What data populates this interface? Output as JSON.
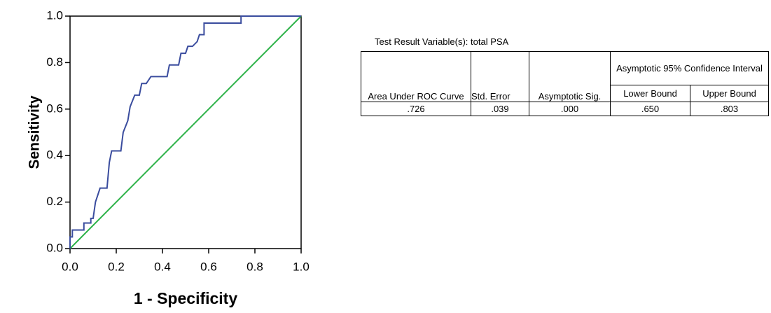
{
  "chart_data": {
    "type": "line",
    "xlabel": "1 - Specificity",
    "ylabel": "Sensitivity",
    "xlim": [
      0,
      1
    ],
    "ylim": [
      0,
      1
    ],
    "xticks": [
      {
        "value": 0,
        "label": "0.0"
      },
      {
        "value": 0.2,
        "label": "0.2"
      },
      {
        "value": 0.4,
        "label": "0.4"
      },
      {
        "value": 0.6,
        "label": "0.6"
      },
      {
        "value": 0.8,
        "label": "0.8"
      },
      {
        "value": 1,
        "label": "1.0"
      }
    ],
    "yticks": [
      {
        "value": 0,
        "label": "0.0"
      },
      {
        "value": 0.2,
        "label": "0.2"
      },
      {
        "value": 0.4,
        "label": "0.4"
      },
      {
        "value": 0.6,
        "label": "0.6"
      },
      {
        "value": 0.8,
        "label": "0.8"
      },
      {
        "value": 1,
        "label": "1.0"
      }
    ],
    "series": [
      {
        "color": "#3a4c9e",
        "x": [
          0,
          0,
          0.01,
          0.01,
          0.06,
          0.06,
          0.09,
          0.09,
          0.1,
          0.11,
          0.13,
          0.16,
          0.17,
          0.18,
          0.22,
          0.23,
          0.25,
          0.26,
          0.28,
          0.3,
          0.31,
          0.33,
          0.35,
          0.42,
          0.43,
          0.47,
          0.48,
          0.5,
          0.51,
          0.53,
          0.55,
          0.56,
          0.58,
          0.58,
          0.74,
          0.74,
          1
        ],
        "values": [
          0,
          0.05,
          0.05,
          0.08,
          0.08,
          0.11,
          0.11,
          0.13,
          0.13,
          0.2,
          0.26,
          0.26,
          0.37,
          0.42,
          0.42,
          0.5,
          0.55,
          0.61,
          0.66,
          0.66,
          0.71,
          0.71,
          0.74,
          0.74,
          0.79,
          0.79,
          0.84,
          0.84,
          0.87,
          0.87,
          0.89,
          0.92,
          0.92,
          0.97,
          0.97,
          1,
          1
        ]
      },
      {
        "color": "#2fb34a",
        "x": [
          0,
          1
        ],
        "values": [
          0,
          1
        ]
      }
    ]
  },
  "table": {
    "caption": "Test Result Variable(s): total PSA",
    "header": [
      "Area Under ROC Curve",
      "Std. Error",
      "Asymptotic Sig.",
      "Asymptotic 95% Confidence Interval"
    ],
    "subheader": [
      "Lower Bound",
      "Upper Bound"
    ],
    "rows": [
      [
        ".726",
        ".039",
        ".000",
        ".650",
        ".803"
      ]
    ]
  }
}
